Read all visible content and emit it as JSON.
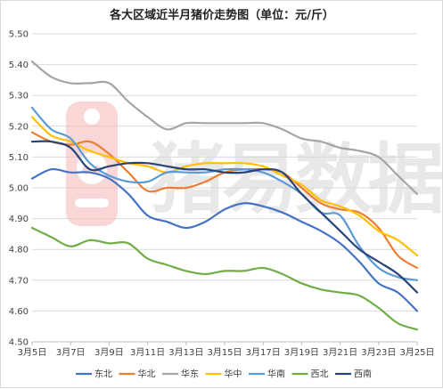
{
  "chart_data": {
    "type": "line",
    "title": "各大区域近半月猪价走势图（单位：元/斤）",
    "xlabel": "",
    "ylabel": "",
    "ylim": [
      4.5,
      5.5
    ],
    "y_ticks": [
      "4.50",
      "4.60",
      "4.70",
      "4.80",
      "4.90",
      "5.00",
      "5.10",
      "5.20",
      "5.30",
      "5.40",
      "5.50"
    ],
    "x_tick_labels": [
      "3月5日",
      "3月7日",
      "3月9日",
      "3月11日",
      "3月13日",
      "3月15日",
      "3月17日",
      "3月19日",
      "3月21日",
      "3月23日",
      "3月25日"
    ],
    "categories": [
      "3月5日",
      "3月6日",
      "3月7日",
      "3月8日",
      "3月9日",
      "3月10日",
      "3月11日",
      "3月12日",
      "3月13日",
      "3月14日",
      "3月15日",
      "3月16日",
      "3月17日",
      "3月18日",
      "3月19日",
      "3月20日",
      "3月21日",
      "3月22日",
      "3月23日",
      "3月24日",
      "3月25日"
    ],
    "grid": "horizontal",
    "legend_position": "bottom",
    "watermark": "猪易数据",
    "series": [
      {
        "name": "东北",
        "color": "#4472c4",
        "values": [
          5.03,
          5.06,
          5.05,
          5.05,
          5.03,
          4.98,
          4.91,
          4.89,
          4.87,
          4.89,
          4.93,
          4.95,
          4.94,
          4.92,
          4.89,
          4.86,
          4.82,
          4.76,
          4.69,
          4.66,
          4.6
        ]
      },
      {
        "name": "华北",
        "color": "#ed7d31",
        "values": [
          5.18,
          5.15,
          5.14,
          5.15,
          5.11,
          5.05,
          4.99,
          5.0,
          5.0,
          5.02,
          5.05,
          5.06,
          5.06,
          5.05,
          5.0,
          4.95,
          4.93,
          4.92,
          4.87,
          4.78,
          4.74
        ]
      },
      {
        "name": "华东",
        "color": "#a5a5a5",
        "values": [
          5.41,
          5.36,
          5.34,
          5.34,
          5.34,
          5.28,
          5.23,
          5.19,
          5.21,
          5.21,
          5.21,
          5.21,
          5.21,
          5.19,
          5.16,
          5.15,
          5.13,
          5.12,
          5.1,
          5.04,
          4.98
        ]
      },
      {
        "name": "华中",
        "color": "#ffc000",
        "values": [
          5.23,
          5.17,
          5.15,
          5.12,
          5.1,
          5.08,
          5.07,
          5.05,
          5.07,
          5.08,
          5.08,
          5.08,
          5.07,
          5.04,
          5.01,
          4.96,
          4.94,
          4.91,
          4.86,
          4.83,
          4.78
        ]
      },
      {
        "name": "华南",
        "color": "#5b9bd5",
        "values": [
          5.26,
          5.19,
          5.16,
          5.08,
          5.04,
          5.02,
          5.02,
          5.05,
          5.05,
          5.05,
          5.06,
          5.06,
          5.05,
          5.02,
          4.98,
          4.92,
          4.91,
          4.81,
          4.74,
          4.71,
          4.7
        ]
      },
      {
        "name": "西北",
        "color": "#70ad47",
        "values": [
          4.87,
          4.84,
          4.81,
          4.83,
          4.82,
          4.82,
          4.77,
          4.75,
          4.73,
          4.72,
          4.73,
          4.73,
          4.74,
          4.72,
          4.69,
          4.67,
          4.66,
          4.65,
          4.61,
          4.56,
          4.54
        ]
      },
      {
        "name": "西南",
        "color": "#264478",
        "values": [
          5.15,
          5.15,
          5.13,
          5.06,
          5.07,
          5.08,
          5.08,
          5.07,
          5.06,
          5.06,
          5.05,
          5.05,
          5.06,
          5.05,
          4.98,
          4.92,
          4.86,
          4.8,
          4.76,
          4.72,
          4.66
        ]
      }
    ]
  }
}
